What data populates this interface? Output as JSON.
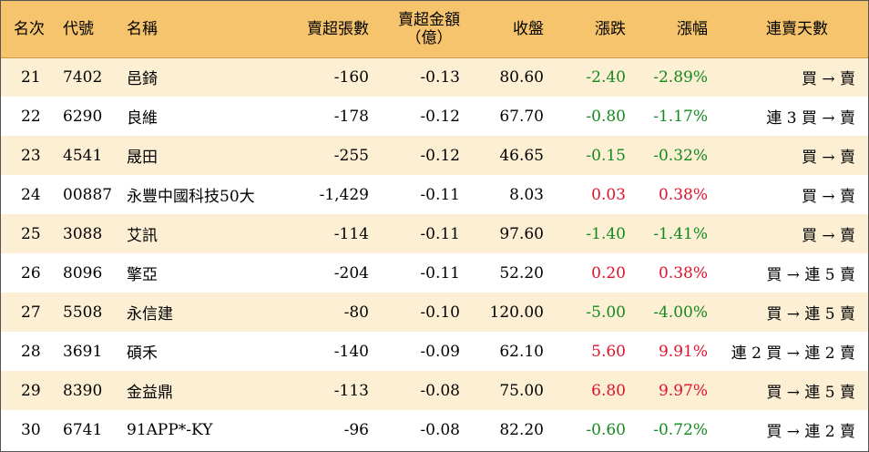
{
  "headers": {
    "rank": "名次",
    "code": "代號",
    "name": "名稱",
    "net_sell_lots": "賣超張數",
    "net_sell_amount_line1": "賣超金額",
    "net_sell_amount_line2": "（億）",
    "close": "收盤",
    "change": "漲跌",
    "change_pct": "漲幅",
    "streak": "連賣天數"
  },
  "colors": {
    "header_bg": "#f5c46c",
    "odd_row_bg": "#fcefd3",
    "up": "#e0112b",
    "down": "#138a1e"
  },
  "rows": [
    {
      "rank": "21",
      "code": "7402",
      "name": "邑錡",
      "lots": "-160",
      "amount": "-0.13",
      "close": "80.60",
      "change": "-2.40",
      "pct": "-2.89%",
      "dir": "down",
      "streak": "買 → 賣"
    },
    {
      "rank": "22",
      "code": "6290",
      "name": "良維",
      "lots": "-178",
      "amount": "-0.12",
      "close": "67.70",
      "change": "-0.80",
      "pct": "-1.17%",
      "dir": "down",
      "streak": "連 3 買 → 賣"
    },
    {
      "rank": "23",
      "code": "4541",
      "name": "晟田",
      "lots": "-255",
      "amount": "-0.12",
      "close": "46.65",
      "change": "-0.15",
      "pct": "-0.32%",
      "dir": "down",
      "streak": "買 → 賣"
    },
    {
      "rank": "24",
      "code": "00887",
      "name": "永豐中國科技50大",
      "lots": "-1,429",
      "amount": "-0.11",
      "close": "8.03",
      "change": "0.03",
      "pct": "0.38%",
      "dir": "up",
      "streak": "買 → 賣"
    },
    {
      "rank": "25",
      "code": "3088",
      "name": "艾訊",
      "lots": "-114",
      "amount": "-0.11",
      "close": "97.60",
      "change": "-1.40",
      "pct": "-1.41%",
      "dir": "down",
      "streak": "買 → 賣"
    },
    {
      "rank": "26",
      "code": "8096",
      "name": "擎亞",
      "lots": "-204",
      "amount": "-0.11",
      "close": "52.20",
      "change": "0.20",
      "pct": "0.38%",
      "dir": "up",
      "streak": "買 → 連 5 賣"
    },
    {
      "rank": "27",
      "code": "5508",
      "name": "永信建",
      "lots": "-80",
      "amount": "-0.10",
      "close": "120.00",
      "change": "-5.00",
      "pct": "-4.00%",
      "dir": "down",
      "streak": "買 → 連 5 賣"
    },
    {
      "rank": "28",
      "code": "3691",
      "name": "碩禾",
      "lots": "-140",
      "amount": "-0.09",
      "close": "62.10",
      "change": "5.60",
      "pct": "9.91%",
      "dir": "up",
      "streak": "連 2 買 → 連 2 賣"
    },
    {
      "rank": "29",
      "code": "8390",
      "name": "金益鼎",
      "lots": "-113",
      "amount": "-0.08",
      "close": "75.00",
      "change": "6.80",
      "pct": "9.97%",
      "dir": "up",
      "streak": "買 → 連 5 賣"
    },
    {
      "rank": "30",
      "code": "6741",
      "name": "91APP*-KY",
      "lots": "-96",
      "amount": "-0.08",
      "close": "82.20",
      "change": "-0.60",
      "pct": "-0.72%",
      "dir": "down",
      "streak": "買 → 連 2 賣"
    }
  ]
}
